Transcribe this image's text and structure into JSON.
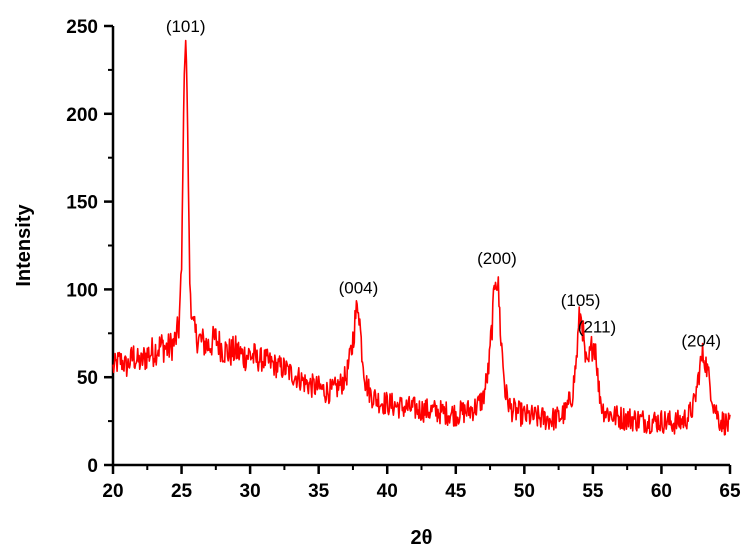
{
  "chart_data": {
    "type": "line",
    "title": "",
    "xlabel": "2θ",
    "ylabel": "Intensity",
    "xlim": [
      20,
      65
    ],
    "ylim": [
      0,
      250
    ],
    "grid": false,
    "x_ticks": [
      20,
      25,
      30,
      35,
      40,
      45,
      50,
      55,
      60,
      65
    ],
    "y_ticks": [
      0,
      50,
      100,
      150,
      200,
      250
    ],
    "line_color": "#ff0000",
    "series": [
      {
        "x": [
          20.0,
          20.5,
          21.0,
          21.5,
          22.0,
          22.5,
          23.0,
          23.5,
          24.0,
          24.5,
          24.8,
          25.0,
          25.1,
          25.2,
          25.3,
          25.4,
          25.5,
          25.6,
          25.8,
          26.0,
          26.5,
          27.0,
          27.5,
          28.0,
          28.5,
          29.0,
          29.5,
          30.0,
          30.5,
          31.0,
          31.5,
          32.0,
          32.5,
          33.0,
          33.5,
          34.0,
          34.5,
          35.0,
          35.5,
          36.0,
          36.5,
          37.0,
          37.4,
          37.7,
          37.9,
          38.1,
          38.4,
          38.8,
          39.5,
          40.0,
          41.0,
          42.0,
          43.0,
          44.0,
          45.0,
          45.5,
          46.0,
          46.5,
          47.0,
          47.4,
          47.7,
          47.9,
          48.1,
          48.3,
          48.6,
          49.0,
          49.5,
          50.0,
          51.0,
          52.0,
          52.5,
          53.0,
          53.5,
          53.8,
          54.0,
          54.2,
          54.4,
          54.6,
          54.8,
          55.0,
          55.2,
          55.4,
          55.7,
          56.0,
          56.5,
          57.0,
          58.0,
          59.0,
          60.0,
          61.0,
          61.5,
          62.0,
          62.4,
          62.7,
          62.9,
          63.1,
          63.4,
          63.8,
          64.2,
          64.6,
          65.0
        ],
        "values": [
          55,
          60,
          56,
          62,
          58,
          63,
          65,
          68,
          66,
          70,
          78,
          110,
          170,
          225,
          242,
          215,
          160,
          105,
          80,
          74,
          70,
          68,
          72,
          66,
          64,
          65,
          62,
          63,
          60,
          60,
          58,
          56,
          55,
          52,
          50,
          47,
          45,
          44,
          42,
          42,
          45,
          50,
          65,
          85,
          93,
          70,
          48,
          40,
          36,
          35,
          33,
          32,
          31,
          30,
          29,
          30,
          31,
          33,
          38,
          55,
          85,
          110,
          100,
          72,
          42,
          32,
          30,
          28,
          27,
          26,
          27,
          30,
          40,
          60,
          82,
          85,
          62,
          55,
          62,
          70,
          68,
          45,
          32,
          30,
          28,
          27,
          26,
          25,
          25,
          24,
          25,
          28,
          35,
          50,
          60,
          63,
          52,
          35,
          26,
          24,
          22
        ]
      }
    ],
    "annotations": [
      {
        "text": "(101)",
        "x": 25.3,
        "y": 242
      },
      {
        "text": "(004)",
        "x": 37.9,
        "y": 93
      },
      {
        "text": "(200)",
        "x": 48.0,
        "y": 110
      },
      {
        "text": "(105)",
        "x": 54.1,
        "y": 86
      },
      {
        "text": "(211)",
        "x": 55.3,
        "y": 71
      },
      {
        "text": "(204)",
        "x": 62.9,
        "y": 63
      }
    ]
  }
}
